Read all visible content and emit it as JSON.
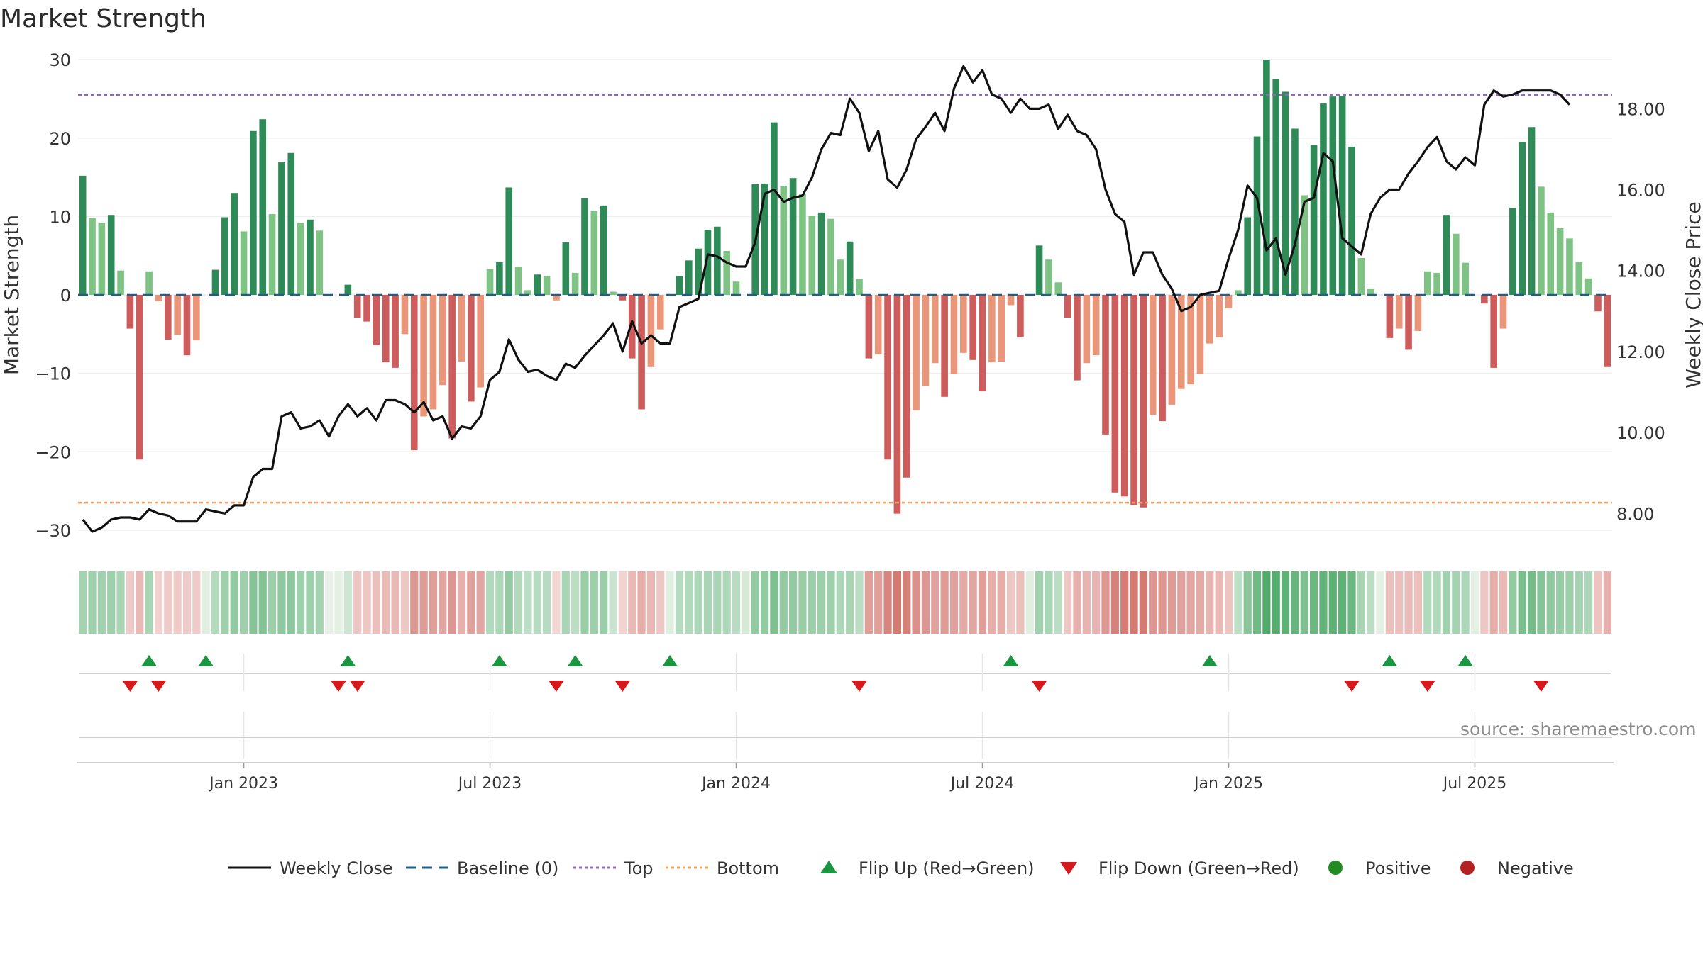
{
  "title": "Market Strength",
  "source": "source: sharemaestro.com",
  "colors": {
    "weekly_close": "#111111",
    "baseline": "#1f5f8b",
    "top": "#9467bd",
    "bottom": "#f0a05a",
    "pos_strong": "#2e8b57",
    "pos_light": "#7ec384",
    "neg_strong": "#cd5c5c",
    "neg_light": "#e9967a",
    "flip_up": "#1a9641",
    "flip_down": "#d7191c",
    "positive": "#228b22",
    "negative": "#b22222"
  },
  "chart_data": {
    "type": "bar+line",
    "title": "Market Strength",
    "ylabel": "Market Strength",
    "y2label": "Weekly Close Price",
    "ylim": [
      -32,
      32
    ],
    "y2lim": [
      7.2,
      19.6
    ],
    "yticks": [
      30,
      20,
      10,
      0,
      -10,
      -20,
      -30
    ],
    "ytick_labels": [
      "30",
      "20",
      "10",
      "0",
      "−10",
      "−20",
      "−30"
    ],
    "y2ticks": [
      18,
      16,
      14,
      12,
      10,
      8
    ],
    "y2tick_labels": [
      "18.00",
      "16.00",
      "14.00",
      "12.00",
      "10.00",
      "8.00"
    ],
    "xticks": [
      "Jan 2023",
      "Jul 2023",
      "Jan 2024",
      "Jul 2024",
      "Jan 2025",
      "Jul 2025"
    ],
    "xtick_week_index": [
      17,
      43,
      69,
      95,
      121,
      147
    ],
    "top_line": 25.5,
    "bottom_line": -26.5,
    "baseline": 0,
    "strength": [
      15.2,
      9.8,
      9.2,
      10.2,
      3.1,
      -4.3,
      -21,
      3,
      -0.8,
      -5.7,
      -5.1,
      -7.7,
      -5.8,
      0,
      3.2,
      9.9,
      13,
      8.1,
      20.9,
      22.4,
      10.3,
      16.9,
      18.1,
      9.2,
      9.6,
      8.2,
      0,
      0,
      1.3,
      -2.9,
      -3.4,
      -6.4,
      -8.6,
      -9.3,
      -5,
      -19.8,
      -15.5,
      -14.6,
      -11.5,
      -18.3,
      -8.5,
      -13.6,
      -11.8,
      3.3,
      4.2,
      13.7,
      3.6,
      0.6,
      2.6,
      2.4,
      -0.7,
      6.7,
      2.8,
      12.3,
      10.7,
      11.4,
      0.4,
      -0.7,
      -8.1,
      -14.6,
      -9.2,
      -4.4,
      0,
      2.4,
      4.4,
      5.9,
      8.3,
      8.7,
      5.6,
      1.7,
      0,
      14.1,
      14.2,
      22,
      13.9,
      14.9,
      12.9,
      10.1,
      10.5,
      9.7,
      4.5,
      6.8,
      2,
      -8.1,
      -7.6,
      -21,
      -27.9,
      -23.3,
      -14.7,
      -11.6,
      -8.7,
      -13,
      -10.1,
      -7.4,
      -8.3,
      -12.3,
      -8.6,
      -8.5,
      -1.3,
      -5.4,
      0,
      6.3,
      4.5,
      1.6,
      -2.9,
      -10.9,
      -8.7,
      -7.7,
      -17.8,
      -25.2,
      -25.7,
      -26.8,
      -27.1,
      -15.3,
      -16.1,
      -14,
      -12,
      -11.4,
      -10.1,
      -6.2,
      -5.4,
      -1.7,
      0.6,
      9.9,
      20.2,
      30,
      27.5,
      25.9,
      21.2,
      12.7,
      19.1,
      24.4,
      25.3,
      25.4,
      18.9,
      4.7,
      0.8,
      0,
      -5.5,
      -4.3,
      -7,
      -4.6,
      3,
      2.8,
      10.2,
      7.8,
      4.1,
      0,
      -1.1,
      -9.3,
      -4.3,
      11.1,
      19.5,
      21.4,
      13.8,
      10.5,
      8.5,
      7.2,
      4.2,
      2.1,
      -2.1,
      -9.2
    ],
    "weekly_close": [
      7.85,
      7.55,
      7.65,
      7.85,
      7.9,
      7.9,
      7.85,
      8.1,
      8.0,
      7.95,
      7.8,
      7.8,
      7.8,
      8.1,
      8.05,
      8.0,
      8.2,
      8.2,
      8.9,
      9.1,
      9.1,
      10.4,
      10.5,
      10.1,
      10.15,
      10.3,
      9.9,
      10.4,
      10.7,
      10.4,
      10.6,
      10.3,
      10.8,
      10.8,
      10.7,
      10.5,
      10.75,
      10.3,
      10.4,
      9.85,
      10.15,
      10.1,
      10.4,
      11.3,
      11.5,
      12.3,
      11.8,
      11.5,
      11.55,
      11.4,
      11.3,
      11.7,
      11.6,
      11.9,
      12.15,
      12.4,
      12.7,
      12.0,
      12.75,
      12.2,
      12.4,
      12.2,
      12.2,
      13.1,
      13.2,
      13.3,
      14.4,
      14.35,
      14.2,
      14.1,
      14.1,
      14.7,
      15.9,
      16.0,
      15.7,
      15.8,
      15.85,
      16.3,
      17.0,
      17.4,
      17.35,
      18.25,
      17.9,
      16.95,
      17.45,
      16.25,
      16.05,
      16.5,
      17.25,
      17.55,
      17.9,
      17.45,
      18.5,
      19.05,
      18.65,
      18.95,
      18.35,
      18.25,
      17.9,
      18.25,
      18.0,
      18.0,
      18.1,
      17.5,
      17.85,
      17.45,
      17.35,
      17.0,
      16.0,
      15.4,
      15.2,
      13.9,
      14.45,
      14.45,
      13.9,
      13.55,
      13.0,
      13.1,
      13.4,
      13.45,
      13.5,
      14.3,
      15.0,
      16.1,
      15.8,
      14.5,
      14.8,
      13.9,
      14.65,
      15.7,
      15.8,
      16.9,
      16.7,
      14.8,
      14.6,
      14.4,
      15.4,
      15.8,
      16.0,
      16.0,
      16.4,
      16.7,
      17.05,
      17.3,
      16.7,
      16.5,
      16.8,
      16.6,
      18.1,
      18.45,
      18.3,
      18.35,
      18.45,
      18.45,
      18.45,
      18.45,
      18.35,
      18.1
    ],
    "flip_up_week_index": [
      7,
      13,
      28,
      44,
      52,
      62,
      98,
      119,
      138,
      146
    ],
    "flip_down_week_index": [
      5,
      8,
      27,
      29,
      50,
      57,
      82,
      101,
      134,
      142,
      154
    ],
    "strip_intensity": [
      0.42,
      0.45,
      0.44,
      0.45,
      0.4,
      0.28,
      0.38,
      0.4,
      0.25,
      0.28,
      0.28,
      0.28,
      0.28,
      0.22,
      0.35,
      0.45,
      0.5,
      0.45,
      0.56,
      0.58,
      0.46,
      0.52,
      0.53,
      0.45,
      0.45,
      0.42,
      0.18,
      0.2,
      0.24,
      0.3,
      0.3,
      0.34,
      0.37,
      0.38,
      0.3,
      0.56,
      0.54,
      0.52,
      0.48,
      0.56,
      0.42,
      0.5,
      0.48,
      0.36,
      0.38,
      0.5,
      0.36,
      0.3,
      0.34,
      0.34,
      0.22,
      0.4,
      0.32,
      0.48,
      0.46,
      0.47,
      0.25,
      0.24,
      0.38,
      0.44,
      0.38,
      0.3,
      0.22,
      0.34,
      0.36,
      0.38,
      0.4,
      0.4,
      0.38,
      0.33,
      0.3,
      0.5,
      0.5,
      0.6,
      0.5,
      0.5,
      0.48,
      0.46,
      0.46,
      0.45,
      0.38,
      0.4,
      0.32,
      0.52,
      0.52,
      0.66,
      0.72,
      0.68,
      0.6,
      0.56,
      0.5,
      0.54,
      0.5,
      0.46,
      0.48,
      0.52,
      0.44,
      0.44,
      0.3,
      0.35,
      0.22,
      0.44,
      0.4,
      0.32,
      0.3,
      0.42,
      0.4,
      0.4,
      0.56,
      0.68,
      0.7,
      0.72,
      0.72,
      0.56,
      0.57,
      0.54,
      0.5,
      0.48,
      0.46,
      0.4,
      0.38,
      0.32,
      0.3,
      0.54,
      0.66,
      0.8,
      0.78,
      0.74,
      0.7,
      0.6,
      0.68,
      0.72,
      0.74,
      0.74,
      0.68,
      0.4,
      0.32,
      0.2,
      0.34,
      0.34,
      0.36,
      0.34,
      0.36,
      0.36,
      0.44,
      0.42,
      0.38,
      0.2,
      0.3,
      0.44,
      0.38,
      0.5,
      0.62,
      0.64,
      0.56,
      0.52,
      0.48,
      0.46,
      0.42,
      0.38,
      0.32,
      0.42
    ]
  },
  "legend": [
    {
      "label": "Weekly Close",
      "icon": "solid-line"
    },
    {
      "label": "Baseline (0)",
      "icon": "dashed-line"
    },
    {
      "label": "Top",
      "icon": "dotted-line-purple"
    },
    {
      "label": "Bottom",
      "icon": "dotted-line-orange"
    },
    {
      "label": "Flip Up (Red→Green)",
      "icon": "triangle-up"
    },
    {
      "label": "Flip Down (Green→Red)",
      "icon": "triangle-down"
    },
    {
      "label": "Positive",
      "icon": "dot-green"
    },
    {
      "label": "Negative",
      "icon": "dot-red"
    }
  ]
}
